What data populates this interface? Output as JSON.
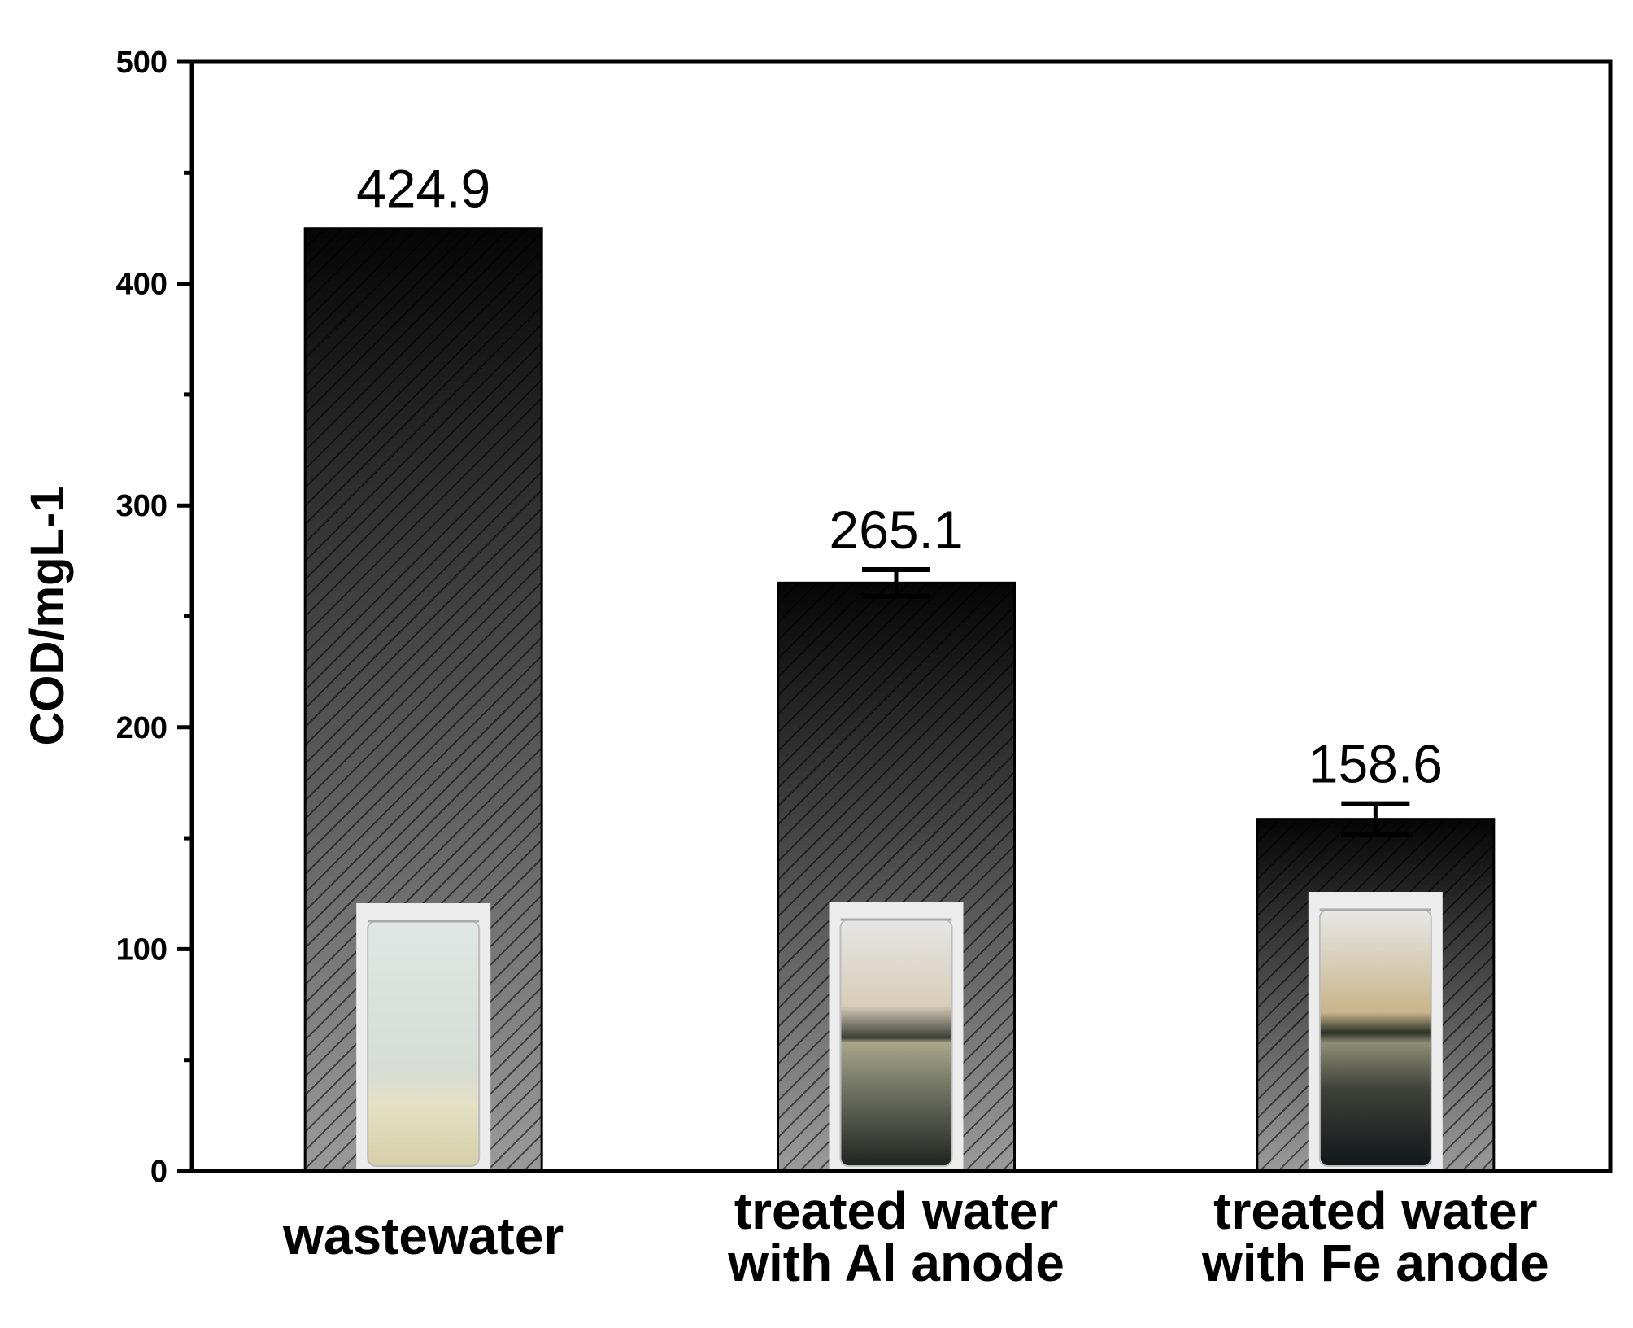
{
  "chart_data": {
    "type": "bar",
    "title": "",
    "xlabel": "",
    "ylabel": "COD/mgL-1",
    "ylim": [
      0,
      500
    ],
    "yticks": [
      0,
      100,
      200,
      300,
      400,
      500
    ],
    "grid": false,
    "legend": "none",
    "categories": [
      [
        "wastewater"
      ],
      [
        "treated water",
        "with Al anode"
      ],
      [
        "treated water",
        "with Fe anode"
      ]
    ],
    "values": [
      424.9,
      265.1,
      158.6
    ],
    "value_labels": [
      "424.9",
      "265.1",
      "158.6"
    ],
    "error": [
      0,
      6,
      7
    ],
    "bar_fill": "hatched dark gradient",
    "bar_color_top": "#050505",
    "bar_color_bottom": "#9a9a9a",
    "inset_images": [
      "beaker-wastewater",
      "beaker-al-anode",
      "beaker-fe-anode"
    ]
  }
}
